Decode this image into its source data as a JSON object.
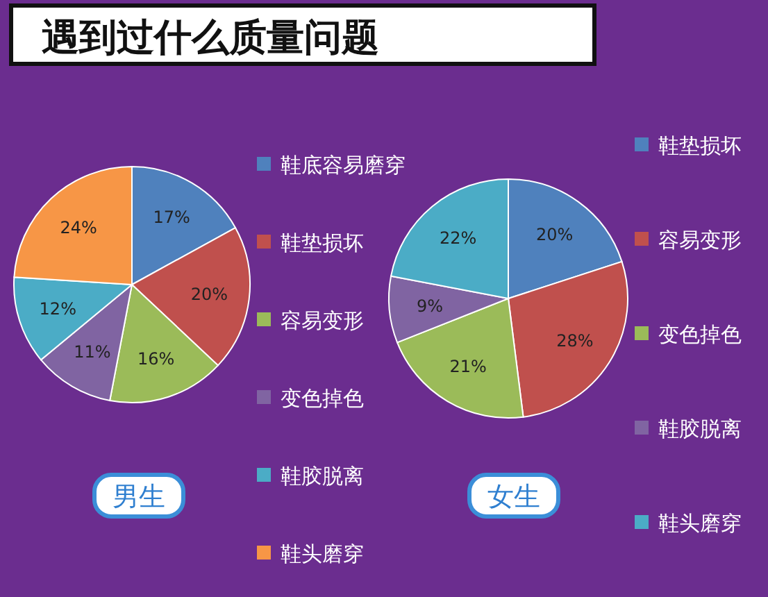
{
  "chart_data": [
    {
      "type": "pie",
      "title": "遇到过什么质量问题",
      "xlabel": "男生",
      "categories": [
        "鞋底容易磨穿",
        "鞋垫损坏",
        "容易变形",
        "变色掉色",
        "鞋胶脱离",
        "鞋头磨穿"
      ],
      "values": [
        17,
        20,
        16,
        11,
        12,
        24
      ],
      "value_labels": [
        "17%",
        "20%",
        "16%",
        "11%",
        "12%",
        "24%"
      ],
      "colors": [
        "#4f81bd",
        "#c0504d",
        "#9bbb59",
        "#8064a2",
        "#4bacc6",
        "#f79646"
      ],
      "legend": "right"
    },
    {
      "type": "pie",
      "xlabel": "女生",
      "categories": [
        "鞋垫损坏",
        "容易变形",
        "变色掉色",
        "鞋胶脱离",
        "鞋头磨穿"
      ],
      "values": [
        20,
        28,
        21,
        9,
        22
      ],
      "value_labels": [
        "20%",
        "28%",
        "21%",
        "9%",
        "22%"
      ],
      "colors": [
        "#4f81bd",
        "#c0504d",
        "#9bbb59",
        "#8064a2",
        "#4bacc6"
      ],
      "legend": "right"
    }
  ]
}
